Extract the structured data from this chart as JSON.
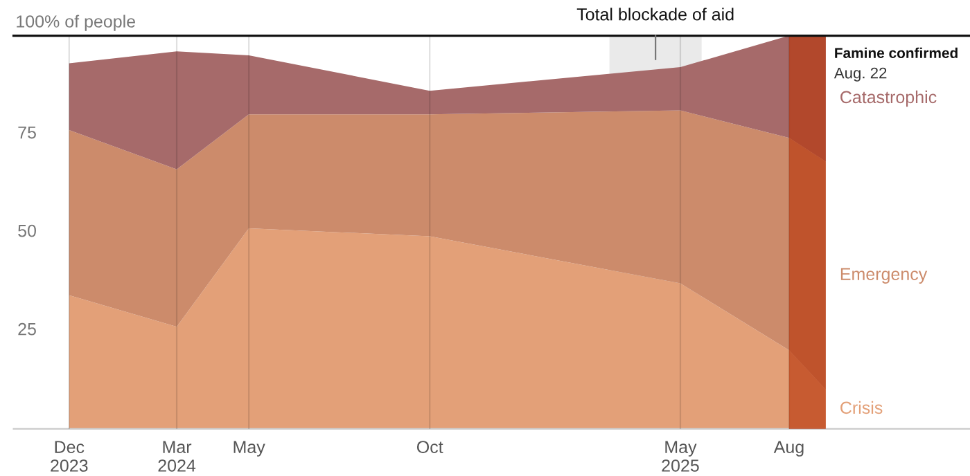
{
  "chart_data": {
    "type": "area",
    "stacked": true,
    "x": [
      "2023-12",
      "2024-03",
      "2024-05",
      "2024-10",
      "2025-05",
      "2025-08",
      "2025-09"
    ],
    "series": [
      {
        "name": "Crisis",
        "color": "#e3a078",
        "values": [
          34,
          26,
          51,
          49,
          37,
          20,
          10
        ]
      },
      {
        "name": "Emergency",
        "color": "#cc8b6b",
        "values": [
          42,
          40,
          29,
          31,
          44,
          54,
          58
        ]
      },
      {
        "name": "Catastrophic",
        "color": "#a66a6a",
        "values": [
          17,
          30,
          15,
          6,
          11,
          26,
          32
        ]
      }
    ],
    "xlim": [
      "2023-10-15",
      "2026-01-01"
    ],
    "xticks": [
      {
        "value": "2023-12",
        "label": "Dec\n2023"
      },
      {
        "value": "2024-03",
        "label": "Mar\n2024"
      },
      {
        "value": "2024-05",
        "label": "May"
      },
      {
        "value": "2024-10",
        "label": "Oct"
      },
      {
        "value": "2025-05",
        "label": "May\n2025"
      },
      {
        "value": "2025-08",
        "label": "Aug"
      }
    ],
    "ylim": [
      0,
      100
    ],
    "yticks": [
      25,
      50,
      75
    ],
    "ylabel": "100% of people",
    "grid": "x",
    "ref_lines": [
      {
        "axis": "y",
        "value": 100,
        "color": "#111111"
      }
    ],
    "bands": [
      {
        "axis": "x",
        "from": "2025-03-02",
        "to": "2025-05-19",
        "label": "Total blockade of aid",
        "color": "#d0d0d0"
      },
      {
        "axis": "x",
        "from": "2025-08",
        "to": "2025-09",
        "label": "Famine confirmed",
        "color": "#b8360a"
      }
    ],
    "annotations": [
      "Aug. 22"
    ]
  }
}
